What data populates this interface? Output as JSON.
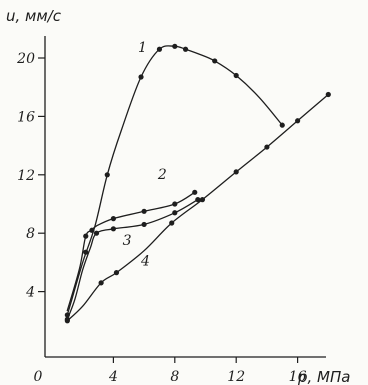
{
  "chart_data": {
    "type": "line",
    "xlabel": "p, МПа",
    "ylabel": "u, мм/с",
    "xlim": [
      0,
      18.5
    ],
    "ylim": [
      0,
      22
    ],
    "xticks": [
      0,
      4,
      8,
      12,
      16
    ],
    "xtick_labels": [
      "0",
      "4",
      "8",
      "12",
      "16"
    ],
    "yticks": [
      4,
      8,
      12,
      16,
      20
    ],
    "ytick_labels": [
      "4",
      "8",
      "12",
      "16",
      "20"
    ],
    "grid": false,
    "legend": "none",
    "series": [
      {
        "name": "1",
        "label_at": [
          5.6,
          20.4
        ],
        "points": [
          [
            1.0,
            2.4
          ],
          [
            1.3,
            3.5
          ],
          [
            2.0,
            6.0
          ],
          [
            2.8,
            8.5
          ],
          [
            3.6,
            12.0
          ],
          [
            4.5,
            15.0
          ],
          [
            5.8,
            18.7
          ],
          [
            7.0,
            20.6
          ],
          [
            8.0,
            20.8
          ],
          [
            8.7,
            20.6
          ],
          [
            9.5,
            20.3
          ],
          [
            10.6,
            19.8
          ],
          [
            12.0,
            18.8
          ],
          [
            13.5,
            17.3
          ],
          [
            15.0,
            15.4
          ]
        ],
        "markers": [
          [
            1.0,
            2.4
          ],
          [
            3.6,
            12.0
          ],
          [
            5.8,
            18.7
          ],
          [
            7.0,
            20.6
          ],
          [
            8.0,
            20.8
          ],
          [
            8.7,
            20.6
          ],
          [
            10.6,
            19.8
          ],
          [
            12.0,
            18.8
          ],
          [
            15.0,
            15.4
          ]
        ]
      },
      {
        "name": "2",
        "label_at": [
          6.9,
          11.7
        ],
        "points": [
          [
            1.0,
            2.7
          ],
          [
            1.8,
            5.6
          ],
          [
            2.2,
            7.8
          ],
          [
            2.6,
            8.2
          ],
          [
            2.9,
            8.5
          ],
          [
            4.0,
            9.0
          ],
          [
            6.0,
            9.5
          ],
          [
            8.0,
            10.0
          ],
          [
            9.3,
            10.8
          ]
        ],
        "markers": [
          [
            2.2,
            7.8
          ],
          [
            2.6,
            8.2
          ],
          [
            4.0,
            9.0
          ],
          [
            6.0,
            9.5
          ],
          [
            8.0,
            10.0
          ],
          [
            9.3,
            10.8
          ]
        ]
      },
      {
        "name": "3",
        "label_at": [
          4.6,
          7.2
        ],
        "points": [
          [
            1.0,
            2.1
          ],
          [
            1.5,
            3.5
          ],
          [
            2.0,
            5.5
          ],
          [
            2.5,
            7.0
          ],
          [
            2.9,
            8.0
          ],
          [
            4.0,
            8.3
          ],
          [
            6.0,
            8.6
          ],
          [
            8.0,
            9.4
          ],
          [
            9.5,
            10.3
          ]
        ],
        "markers": [
          [
            1.0,
            2.1
          ],
          [
            2.2,
            6.7
          ],
          [
            2.9,
            8.0
          ],
          [
            4.0,
            8.3
          ],
          [
            6.0,
            8.6
          ],
          [
            8.0,
            9.4
          ],
          [
            9.5,
            10.3
          ]
        ]
      },
      {
        "name": "4",
        "label_at": [
          5.8,
          5.8
        ],
        "points": [
          [
            1.0,
            2.0
          ],
          [
            2.0,
            3.0
          ],
          [
            3.2,
            4.6
          ],
          [
            4.2,
            5.3
          ],
          [
            6.0,
            6.8
          ],
          [
            7.8,
            8.7
          ],
          [
            9.8,
            10.3
          ],
          [
            12.0,
            12.2
          ],
          [
            14.0,
            13.9
          ],
          [
            16.0,
            15.7
          ],
          [
            18.0,
            17.5
          ]
        ],
        "markers": [
          [
            1.0,
            2.0
          ],
          [
            3.2,
            4.6
          ],
          [
            4.2,
            5.3
          ],
          [
            7.8,
            8.7
          ],
          [
            9.8,
            10.3
          ],
          [
            12.0,
            12.2
          ],
          [
            14.0,
            13.9
          ],
          [
            16.0,
            15.7
          ],
          [
            18.0,
            17.5
          ]
        ]
      }
    ]
  }
}
